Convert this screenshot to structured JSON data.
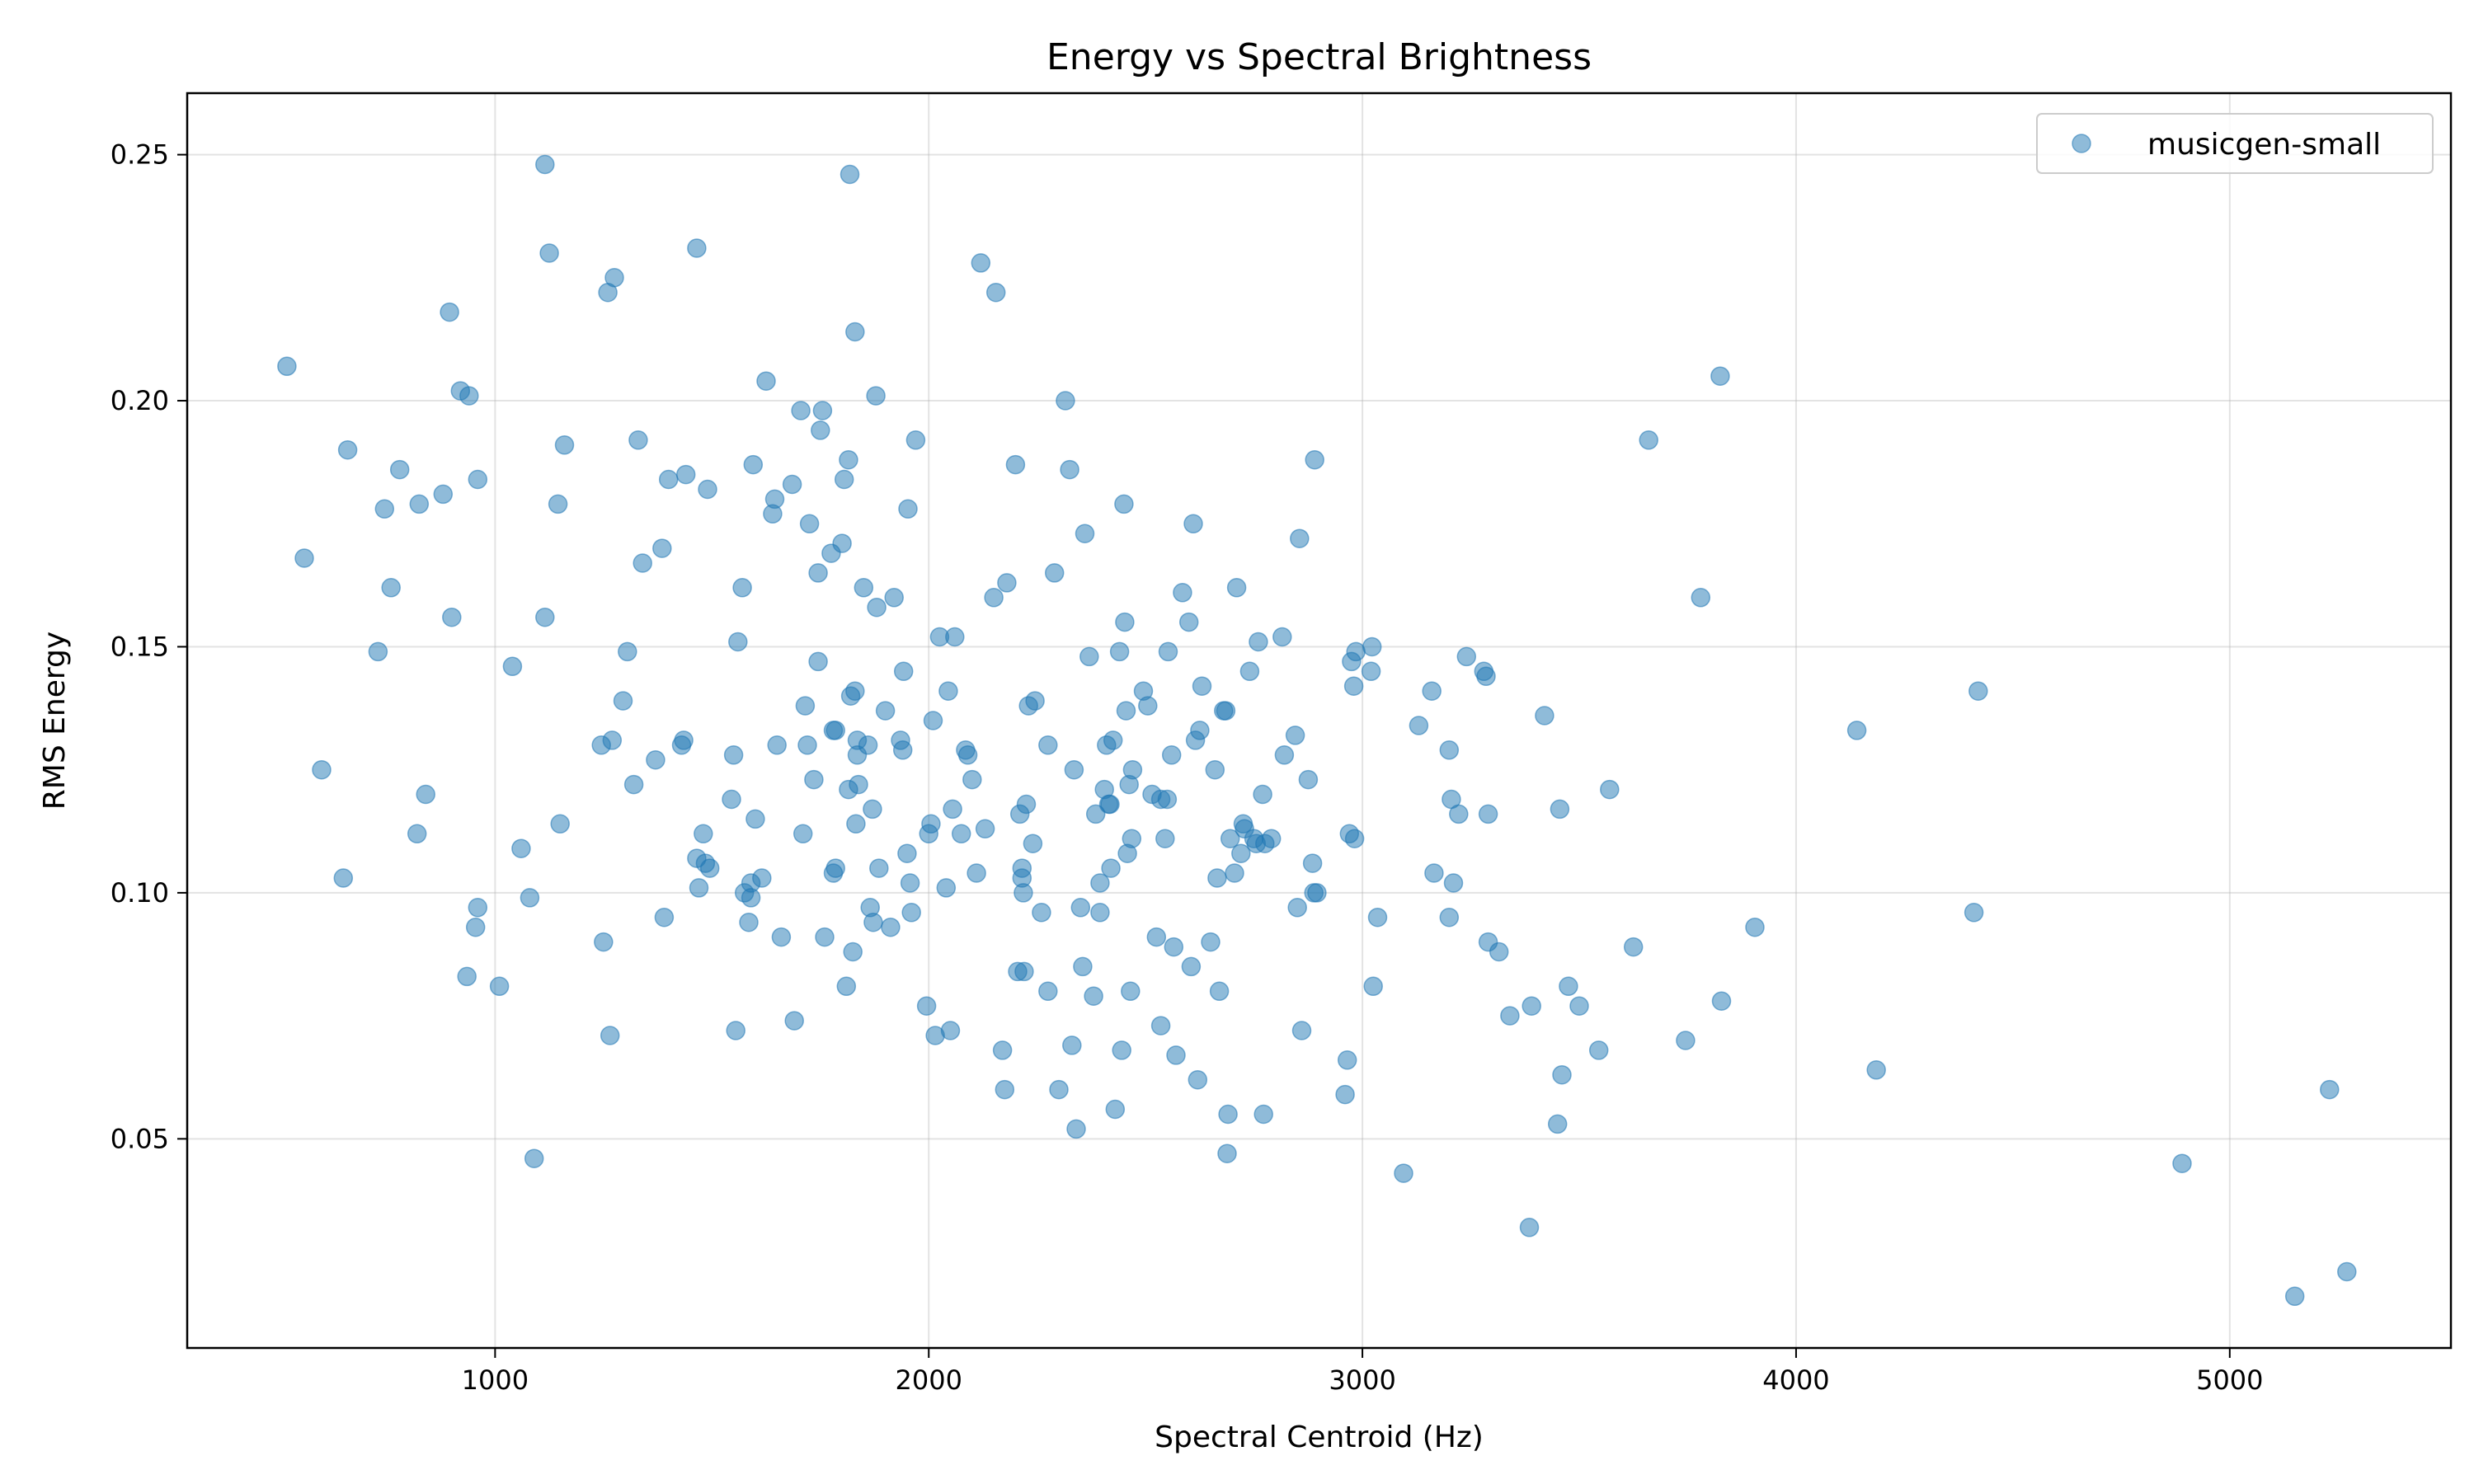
{
  "chart_data": {
    "type": "scatter",
    "title": "Energy vs Spectral Brightness",
    "xlabel": "Spectral Centroid (Hz)",
    "ylabel": "RMS Energy",
    "xlim": [
      290,
      5510
    ],
    "ylim": [
      0.0075,
      0.2625
    ],
    "xticks": [
      1000,
      2000,
      3000,
      4000,
      5000
    ],
    "xtick_labels": [
      "1000",
      "2000",
      "3000",
      "4000",
      "5000"
    ],
    "yticks": [
      0.05,
      0.1,
      0.15,
      0.2,
      0.25
    ],
    "ytick_labels": [
      "0.05",
      "0.10",
      "0.15",
      "0.20",
      "0.25"
    ],
    "grid": true,
    "legend_position": "top-right",
    "series": [
      {
        "name": "musicgen-small",
        "color": "#1f77b4",
        "points": [
          [
            520,
            0.207
          ],
          [
            560,
            0.168
          ],
          [
            600,
            0.125
          ],
          [
            650,
            0.103
          ],
          [
            660,
            0.19
          ],
          [
            730,
            0.149
          ],
          [
            745,
            0.178
          ],
          [
            760,
            0.162
          ],
          [
            780,
            0.186
          ],
          [
            820,
            0.112
          ],
          [
            825,
            0.179
          ],
          [
            840,
            0.12
          ],
          [
            880,
            0.181
          ],
          [
            900,
            0.156
          ],
          [
            895,
            0.218
          ],
          [
            920,
            0.202
          ],
          [
            935,
            0.083
          ],
          [
            940,
            0.201
          ],
          [
            955,
            0.093
          ],
          [
            960,
            0.184
          ],
          [
            960,
            0.097
          ],
          [
            1010,
            0.081
          ],
          [
            1040,
            0.146
          ],
          [
            1060,
            0.109
          ],
          [
            1080,
            0.099
          ],
          [
            1090,
            0.046
          ],
          [
            1115,
            0.248
          ],
          [
            1115,
            0.156
          ],
          [
            1125,
            0.23
          ],
          [
            1145,
            0.179
          ],
          [
            1150,
            0.114
          ],
          [
            1160,
            0.191
          ],
          [
            1245,
            0.13
          ],
          [
            1250,
            0.09
          ],
          [
            1260,
            0.222
          ],
          [
            1265,
            0.071
          ],
          [
            1270,
            0.131
          ],
          [
            1275,
            0.225
          ],
          [
            1295,
            0.139
          ],
          [
            1305,
            0.149
          ],
          [
            1320,
            0.122
          ],
          [
            1330,
            0.192
          ],
          [
            1340,
            0.167
          ],
          [
            1370,
            0.127
          ],
          [
            1385,
            0.17
          ],
          [
            1390,
            0.095
          ],
          [
            1400,
            0.184
          ],
          [
            1430,
            0.13
          ],
          [
            1435,
            0.131
          ],
          [
            1440,
            0.185
          ],
          [
            1465,
            0.231
          ],
          [
            1465,
            0.107
          ],
          [
            1470,
            0.101
          ],
          [
            1480,
            0.112
          ],
          [
            1485,
            0.106
          ],
          [
            1490,
            0.182
          ],
          [
            1495,
            0.105
          ],
          [
            1545,
            0.119
          ],
          [
            1550,
            0.128
          ],
          [
            1555,
            0.072
          ],
          [
            1560,
            0.151
          ],
          [
            1570,
            0.162
          ],
          [
            1575,
            0.1
          ],
          [
            1585,
            0.094
          ],
          [
            1590,
            0.102
          ],
          [
            1590,
            0.099
          ],
          [
            1595,
            0.187
          ],
          [
            1600,
            0.115
          ],
          [
            1615,
            0.103
          ],
          [
            1625,
            0.204
          ],
          [
            1640,
            0.177
          ],
          [
            1645,
            0.18
          ],
          [
            1650,
            0.13
          ],
          [
            1660,
            0.091
          ],
          [
            1685,
            0.183
          ],
          [
            1690,
            0.074
          ],
          [
            1705,
            0.198
          ],
          [
            1710,
            0.112
          ],
          [
            1715,
            0.138
          ],
          [
            1720,
            0.13
          ],
          [
            1725,
            0.175
          ],
          [
            1735,
            0.123
          ],
          [
            1745,
            0.165
          ],
          [
            1745,
            0.147
          ],
          [
            1750,
            0.194
          ],
          [
            1755,
            0.198
          ],
          [
            1760,
            0.091
          ],
          [
            1775,
            0.169
          ],
          [
            1780,
            0.104
          ],
          [
            1780,
            0.133
          ],
          [
            1785,
            0.105
          ],
          [
            1785,
            0.133
          ],
          [
            1800,
            0.171
          ],
          [
            1805,
            0.184
          ],
          [
            1810,
            0.081
          ],
          [
            1815,
            0.188
          ],
          [
            1815,
            0.121
          ],
          [
            1818,
            0.246
          ],
          [
            1820,
            0.14
          ],
          [
            1825,
            0.088
          ],
          [
            1830,
            0.214
          ],
          [
            1830,
            0.141
          ],
          [
            1832,
            0.114
          ],
          [
            1835,
            0.131
          ],
          [
            1835,
            0.128
          ],
          [
            1838,
            0.122
          ],
          [
            1850,
            0.162
          ],
          [
            1860,
            0.13
          ],
          [
            1865,
            0.097
          ],
          [
            1870,
            0.117
          ],
          [
            1872,
            0.094
          ],
          [
            1878,
            0.201
          ],
          [
            1880,
            0.158
          ],
          [
            1885,
            0.105
          ],
          [
            1900,
            0.137
          ],
          [
            1912,
            0.093
          ],
          [
            1920,
            0.16
          ],
          [
            1935,
            0.131
          ],
          [
            1940,
            0.129
          ],
          [
            1942,
            0.145
          ],
          [
            1950,
            0.108
          ],
          [
            1952,
            0.178
          ],
          [
            1957,
            0.102
          ],
          [
            1960,
            0.096
          ],
          [
            1970,
            0.192
          ],
          [
            1995,
            0.077
          ],
          [
            2000,
            0.112
          ],
          [
            2005,
            0.114
          ],
          [
            2010,
            0.135
          ],
          [
            2015,
            0.071
          ],
          [
            2025,
            0.152
          ],
          [
            2040,
            0.101
          ],
          [
            2045,
            0.141
          ],
          [
            2050,
            0.072
          ],
          [
            2055,
            0.117
          ],
          [
            2060,
            0.152
          ],
          [
            2075,
            0.112
          ],
          [
            2085,
            0.129
          ],
          [
            2090,
            0.128
          ],
          [
            2100,
            0.123
          ],
          [
            2110,
            0.104
          ],
          [
            2120,
            0.228
          ],
          [
            2130,
            0.113
          ],
          [
            2150,
            0.16
          ],
          [
            2155,
            0.222
          ],
          [
            2170,
            0.068
          ],
          [
            2175,
            0.06
          ],
          [
            2180,
            0.163
          ],
          [
            2200,
            0.187
          ],
          [
            2205,
            0.084
          ],
          [
            2210,
            0.116
          ],
          [
            2215,
            0.105
          ],
          [
            2215,
            0.103
          ],
          [
            2218,
            0.1
          ],
          [
            2220,
            0.084
          ],
          [
            2225,
            0.118
          ],
          [
            2230,
            0.138
          ],
          [
            2240,
            0.11
          ],
          [
            2245,
            0.139
          ],
          [
            2260,
            0.096
          ],
          [
            2275,
            0.08
          ],
          [
            2275,
            0.13
          ],
          [
            2290,
            0.165
          ],
          [
            2300,
            0.06
          ],
          [
            2315,
            0.2
          ],
          [
            2325,
            0.186
          ],
          [
            2330,
            0.069
          ],
          [
            2335,
            0.125
          ],
          [
            2340,
            0.052
          ],
          [
            2350,
            0.097
          ],
          [
            2355,
            0.085
          ],
          [
            2360,
            0.173
          ],
          [
            2370,
            0.148
          ],
          [
            2380,
            0.079
          ],
          [
            2385,
            0.116
          ],
          [
            2395,
            0.102
          ],
          [
            2395,
            0.096
          ],
          [
            2405,
            0.121
          ],
          [
            2410,
            0.13
          ],
          [
            2415,
            0.118
          ],
          [
            2418,
            0.118
          ],
          [
            2420,
            0.105
          ],
          [
            2425,
            0.131
          ],
          [
            2430,
            0.056
          ],
          [
            2440,
            0.149
          ],
          [
            2445,
            0.068
          ],
          [
            2450,
            0.179
          ],
          [
            2452,
            0.155
          ],
          [
            2455,
            0.137
          ],
          [
            2458,
            0.108
          ],
          [
            2462,
            0.122
          ],
          [
            2465,
            0.08
          ],
          [
            2468,
            0.111
          ],
          [
            2470,
            0.125
          ],
          [
            2495,
            0.141
          ],
          [
            2505,
            0.138
          ],
          [
            2515,
            0.12
          ],
          [
            2525,
            0.091
          ],
          [
            2535,
            0.119
          ],
          [
            2535,
            0.073
          ],
          [
            2545,
            0.111
          ],
          [
            2550,
            0.119
          ],
          [
            2552,
            0.149
          ],
          [
            2560,
            0.128
          ],
          [
            2565,
            0.089
          ],
          [
            2570,
            0.067
          ],
          [
            2585,
            0.161
          ],
          [
            2600,
            0.155
          ],
          [
            2605,
            0.085
          ],
          [
            2610,
            0.175
          ],
          [
            2615,
            0.131
          ],
          [
            2620,
            0.062
          ],
          [
            2625,
            0.133
          ],
          [
            2630,
            0.142
          ],
          [
            2650,
            0.09
          ],
          [
            2660,
            0.125
          ],
          [
            2665,
            0.103
          ],
          [
            2670,
            0.08
          ],
          [
            2680,
            0.137
          ],
          [
            2685,
            0.137
          ],
          [
            2688,
            0.047
          ],
          [
            2690,
            0.055
          ],
          [
            2695,
            0.111
          ],
          [
            2705,
            0.104
          ],
          [
            2710,
            0.162
          ],
          [
            2720,
            0.108
          ],
          [
            2725,
            0.114
          ],
          [
            2728,
            0.113
          ],
          [
            2740,
            0.145
          ],
          [
            2750,
            0.111
          ],
          [
            2755,
            0.11
          ],
          [
            2760,
            0.151
          ],
          [
            2770,
            0.12
          ],
          [
            2772,
            0.055
          ],
          [
            2775,
            0.11
          ],
          [
            2790,
            0.111
          ],
          [
            2815,
            0.152
          ],
          [
            2820,
            0.128
          ],
          [
            2845,
            0.132
          ],
          [
            2850,
            0.097
          ],
          [
            2855,
            0.172
          ],
          [
            2860,
            0.072
          ],
          [
            2875,
            0.123
          ],
          [
            2885,
            0.106
          ],
          [
            2888,
            0.1
          ],
          [
            2890,
            0.188
          ],
          [
            2895,
            0.1
          ],
          [
            2960,
            0.059
          ],
          [
            2965,
            0.066
          ],
          [
            2970,
            0.112
          ],
          [
            2975,
            0.147
          ],
          [
            2980,
            0.142
          ],
          [
            2982,
            0.111
          ],
          [
            2985,
            0.149
          ],
          [
            3020,
            0.145
          ],
          [
            3022,
            0.15
          ],
          [
            3025,
            0.081
          ],
          [
            3035,
            0.095
          ],
          [
            3095,
            0.043
          ],
          [
            3130,
            0.134
          ],
          [
            3160,
            0.141
          ],
          [
            3165,
            0.104
          ],
          [
            3200,
            0.129
          ],
          [
            3200,
            0.095
          ],
          [
            3205,
            0.119
          ],
          [
            3210,
            0.102
          ],
          [
            3222,
            0.116
          ],
          [
            3240,
            0.148
          ],
          [
            3280,
            0.145
          ],
          [
            3285,
            0.144
          ],
          [
            3290,
            0.116
          ],
          [
            3290,
            0.09
          ],
          [
            3315,
            0.088
          ],
          [
            3340,
            0.075
          ],
          [
            3385,
            0.032
          ],
          [
            3390,
            0.077
          ],
          [
            3420,
            0.136
          ],
          [
            3450,
            0.053
          ],
          [
            3455,
            0.117
          ],
          [
            3460,
            0.063
          ],
          [
            3475,
            0.081
          ],
          [
            3500,
            0.077
          ],
          [
            3545,
            0.068
          ],
          [
            3570,
            0.121
          ],
          [
            3625,
            0.089
          ],
          [
            3660,
            0.192
          ],
          [
            3745,
            0.07
          ],
          [
            3780,
            0.16
          ],
          [
            3825,
            0.205
          ],
          [
            3828,
            0.078
          ],
          [
            3905,
            0.093
          ],
          [
            4140,
            0.133
          ],
          [
            4185,
            0.064
          ],
          [
            4410,
            0.096
          ],
          [
            4420,
            0.141
          ],
          [
            4890,
            0.045
          ],
          [
            5150,
            0.018
          ],
          [
            5230,
            0.06
          ],
          [
            5270,
            0.023
          ]
        ]
      }
    ]
  }
}
